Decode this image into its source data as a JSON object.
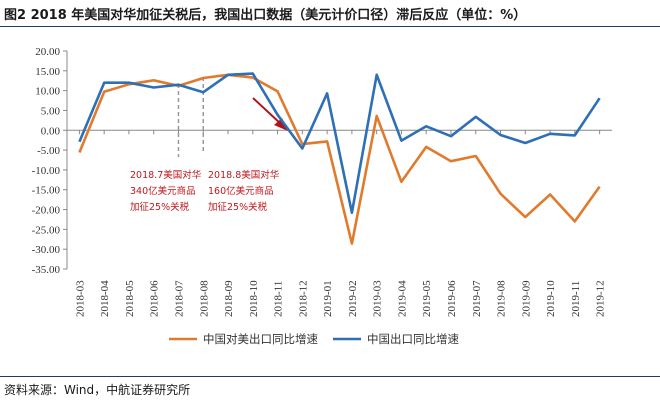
{
  "title": "图2  2018 年美国对华加征关税后，我国出口数据（美元计价口径）滞后反应（单位：%）",
  "source": "资料来源：Wind，中航证券研究所",
  "chart_data": {
    "type": "line",
    "categories": [
      "2018-03",
      "2018-04",
      "2018-05",
      "2018-06",
      "2018-07",
      "2018-08",
      "2018-09",
      "2018-10",
      "2018-11",
      "2018-12",
      "2019-01",
      "2019-02",
      "2019-03",
      "2019-04",
      "2019-05",
      "2019-06",
      "2019-07",
      "2019-08",
      "2019-09",
      "2019-10",
      "2019-11",
      "2019-12"
    ],
    "series": [
      {
        "name": "中国对美出口同比增速",
        "color": "#e07b2e",
        "values": [
          -5.6,
          9.7,
          11.6,
          12.6,
          11.2,
          13.2,
          14.0,
          13.3,
          9.8,
          -3.5,
          -2.8,
          -28.6,
          3.6,
          -13.0,
          -4.2,
          -7.8,
          -6.5,
          -16.0,
          -21.9,
          -16.2,
          -23.0,
          -14.2
        ]
      },
      {
        "name": "中国出口同比增速",
        "color": "#2e6fb5",
        "values": [
          -2.9,
          12.0,
          12.0,
          10.8,
          11.5,
          9.6,
          14.0,
          14.3,
          3.9,
          -4.6,
          9.3,
          -20.8,
          14.0,
          -2.6,
          1.0,
          -1.5,
          3.4,
          -1.2,
          -3.2,
          -0.9,
          -1.3,
          8.1
        ]
      }
    ],
    "ylim": [
      -35,
      20
    ],
    "yticks": [
      "20.00",
      "15.00",
      "10.00",
      "5.00",
      "0.00",
      "-5.00",
      "-10.00",
      "-15.00",
      "-20.00",
      "-25.00",
      "-30.00",
      "-35.00"
    ],
    "annotations": [
      {
        "lines": [
          "2018.7美国对华",
          "340亿美元商品",
          "加征25%关税"
        ],
        "category": "2018-07"
      },
      {
        "lines": [
          "2018.8美国对华",
          "160亿美元商品",
          "加征25%关税"
        ],
        "category": "2018-08"
      }
    ],
    "legend": "bottom-center"
  }
}
